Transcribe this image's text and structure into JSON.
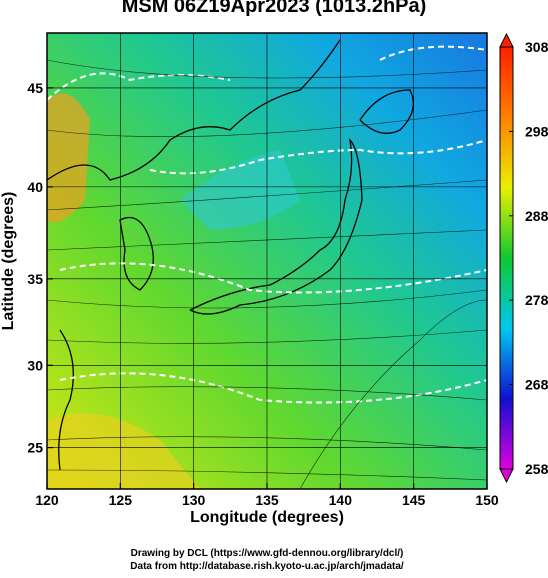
{
  "title": "MSM 06Z19Apr2023 (1013.2hPa)",
  "map": {
    "projection": "mercator",
    "x_axis": {
      "label": "Longitude (degrees)",
      "lim": [
        120,
        150
      ],
      "ticks": [
        120,
        125,
        130,
        135,
        140,
        145,
        150
      ]
    },
    "y_axis": {
      "label": "Latitude  (degrees)",
      "lim": [
        22.4,
        47.6
      ],
      "ticks": [
        25,
        30,
        35,
        40,
        45
      ]
    },
    "grid": true
  },
  "colorbar": {
    "lim": [
      258,
      308
    ],
    "ticks": [
      258,
      268,
      278,
      288,
      298,
      308
    ],
    "colors": [
      "#e000e0",
      "#1010d0",
      "#00c8f0",
      "#10c830",
      "#e8f000",
      "#ff8000",
      "#ff2000"
    ]
  },
  "credits": [
    "Drawing by DCL (https://www.gfd-dennou.org/library/dcl/)",
    "Data from http://database.rish.kyoto-u.ac.jp/arch/jmadata/"
  ]
}
